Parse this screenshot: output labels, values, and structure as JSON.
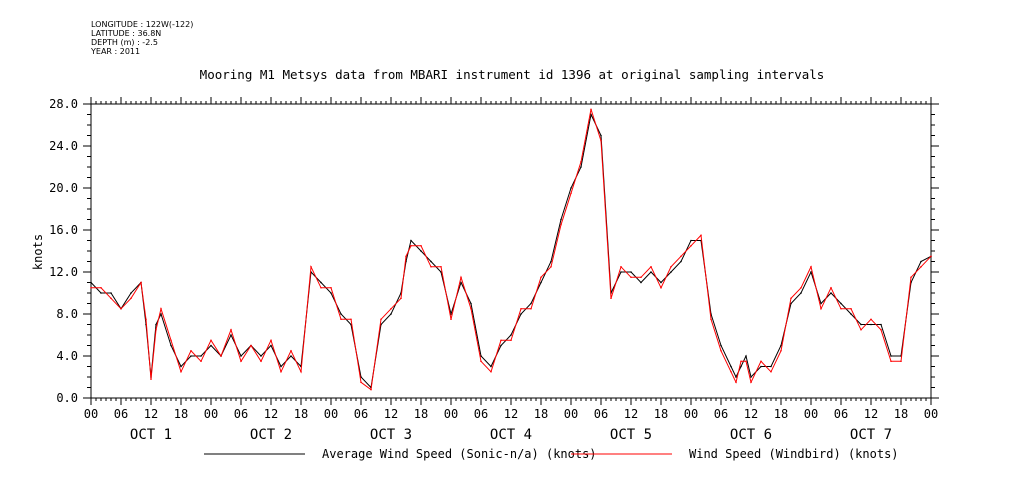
{
  "metadata": {
    "longitude": "LONGITUDE : 122W(-122)",
    "latitude": "LATITUDE : 36.8N",
    "depth": "DEPTH (m) : -2.5",
    "year": "YEAR : 2011"
  },
  "colors": {
    "average": "#000000",
    "windbird": "#ff0000"
  },
  "chart_data": {
    "type": "line",
    "title": "Mooring M1 Metsys data from MBARI instrument id 1396 at original sampling intervals",
    "ylabel": "knots",
    "xlabel": "",
    "ylim": [
      0,
      28
    ],
    "yticks": [
      "0.0",
      "4.0",
      "8.0",
      "12.0",
      "16.0",
      "20.0",
      "24.0",
      "28.0"
    ],
    "xlim_hours": [
      0,
      168
    ],
    "x_hour_ticks": [
      "00",
      "06",
      "12",
      "18",
      "00",
      "06",
      "12",
      "18",
      "00",
      "06",
      "12",
      "18",
      "00",
      "06",
      "12",
      "18",
      "00",
      "06",
      "12",
      "18",
      "00",
      "06",
      "12",
      "18",
      "00",
      "06",
      "12",
      "18",
      "00"
    ],
    "day_labels": [
      "OCT 1",
      "OCT 2",
      "OCT 3",
      "OCT 4",
      "OCT 5",
      "OCT 6",
      "OCT 7"
    ],
    "grid": false,
    "legend_position": "bottom",
    "series": [
      {
        "name": "Average Wind Speed (Sonic-n/a) (knots)",
        "x": [
          0,
          2,
          4,
          6,
          8,
          10,
          11,
          12,
          13,
          14,
          16,
          18,
          20,
          22,
          24,
          26,
          28,
          30,
          32,
          34,
          36,
          38,
          40,
          42,
          44,
          46,
          48,
          50,
          52,
          54,
          56,
          58,
          60,
          62,
          63,
          64,
          66,
          68,
          70,
          72,
          74,
          76,
          78,
          80,
          82,
          84,
          86,
          88,
          90,
          92,
          94,
          96,
          98,
          100,
          102,
          104,
          106,
          108,
          110,
          112,
          114,
          116,
          118,
          120,
          122,
          124,
          126,
          128,
          129,
          130,
          131,
          132,
          134,
          136,
          138,
          140,
          142,
          144,
          146,
          148,
          150,
          152,
          154,
          156,
          158,
          160,
          162,
          164,
          166,
          168
        ],
        "y": [
          11,
          10,
          10,
          8.5,
          10,
          11,
          7,
          2,
          7,
          8,
          5,
          3,
          4,
          4,
          5,
          4,
          6,
          4,
          5,
          4,
          5,
          3,
          4,
          3,
          12,
          11,
          10,
          8,
          7,
          2,
          1,
          7,
          8,
          10,
          13,
          15,
          14,
          13,
          12,
          8,
          11,
          9,
          4,
          3,
          5,
          6,
          8,
          9,
          11,
          13,
          17,
          20,
          22,
          27,
          25,
          10,
          12,
          12,
          11,
          12,
          11,
          12,
          13,
          15,
          15,
          8,
          5,
          3,
          2,
          3,
          4,
          2,
          3,
          3,
          5,
          9,
          10,
          12,
          9,
          10,
          9,
          8,
          7,
          7,
          7,
          4,
          4,
          11,
          13,
          13.5
        ]
      },
      {
        "name": "Wind Speed (Windbird) (knots)",
        "x": [
          0,
          2,
          4,
          6,
          8,
          10,
          11,
          12,
          13,
          14,
          16,
          18,
          20,
          22,
          24,
          26,
          28,
          30,
          32,
          34,
          36,
          38,
          40,
          42,
          44,
          46,
          48,
          50,
          52,
          54,
          56,
          58,
          60,
          62,
          63,
          64,
          66,
          68,
          70,
          72,
          74,
          76,
          78,
          80,
          82,
          84,
          86,
          88,
          90,
          92,
          94,
          96,
          98,
          100,
          102,
          104,
          106,
          108,
          110,
          112,
          114,
          116,
          118,
          120,
          122,
          124,
          126,
          128,
          129,
          130,
          131,
          132,
          134,
          136,
          138,
          140,
          142,
          144,
          146,
          148,
          150,
          152,
          154,
          156,
          158,
          160,
          162,
          164,
          166,
          168
        ],
        "y": [
          10.5,
          10.5,
          9.5,
          8.5,
          9.5,
          11,
          7.5,
          1.8,
          6.5,
          8.5,
          5.5,
          2.5,
          4.5,
          3.5,
          5.5,
          4,
          6.5,
          3.5,
          5,
          3.5,
          5.5,
          2.5,
          4.5,
          2.5,
          12.5,
          10.5,
          10.5,
          7.5,
          7.5,
          1.5,
          0.8,
          7.5,
          8.5,
          9.5,
          13.5,
          14.5,
          14.5,
          12.5,
          12.5,
          7.5,
          11.5,
          8.5,
          3.5,
          2.5,
          5.5,
          5.5,
          8.5,
          8.5,
          11.5,
          12.5,
          16.5,
          19.5,
          22.5,
          27.5,
          24.5,
          9.5,
          12.5,
          11.5,
          11.5,
          12.5,
          10.5,
          12.5,
          13.5,
          14.5,
          15.5,
          7.5,
          4.5,
          2.5,
          1.5,
          3.5,
          3.5,
          1.5,
          3.5,
          2.5,
          4.5,
          9.5,
          10.5,
          12.5,
          8.5,
          10.5,
          8.5,
          8.5,
          6.5,
          7.5,
          6.5,
          3.5,
          3.5,
          11.5,
          12.5,
          13.5
        ]
      }
    ]
  }
}
